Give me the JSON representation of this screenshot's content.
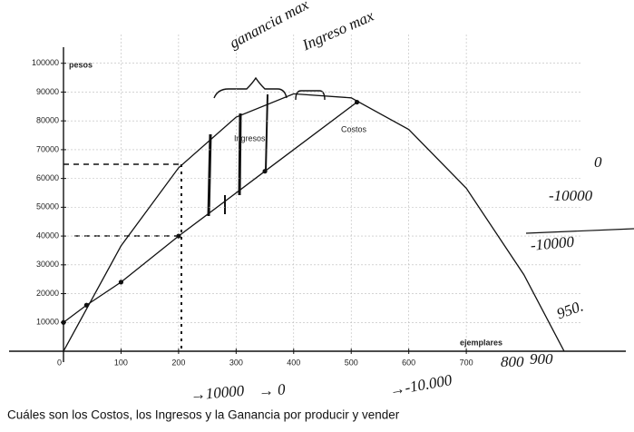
{
  "chart_data": {
    "type": "line",
    "y_label": "pesos",
    "x_label": "ejemplares",
    "origin_label": "0",
    "xlim": [
      0,
      900
    ],
    "ylim": [
      0,
      110000
    ],
    "xticks": [
      100,
      200,
      300,
      400,
      500,
      600,
      700
    ],
    "yticks": [
      10000,
      20000,
      30000,
      40000,
      50000,
      60000,
      70000,
      80000,
      90000,
      100000
    ],
    "grid": true,
    "series": [
      {
        "name": "Ingresos",
        "color": "#111111",
        "markers": false,
        "x": [
          0,
          100,
          200,
          300,
          400,
          500,
          600,
          700,
          800,
          870
        ],
        "values": [
          0,
          36600,
          63700,
          81300,
          89400,
          88000,
          77000,
          56600,
          26600,
          0
        ]
      },
      {
        "name": "Costos",
        "color": "#111111",
        "markers": true,
        "x": [
          0,
          40,
          100,
          200,
          350,
          510
        ],
        "values": [
          10000,
          16000,
          24000,
          40000,
          62500,
          86500
        ]
      }
    ],
    "annotations": [
      "ganancia max",
      "Ingreso max",
      "0",
      "-10000",
      "-10000",
      "950.",
      "800",
      "900",
      "→10000",
      "→ 0",
      "→-10.000"
    ],
    "question": "Cuáles son los Costos, los Ingresos y la Ganancia por producir y vender"
  }
}
